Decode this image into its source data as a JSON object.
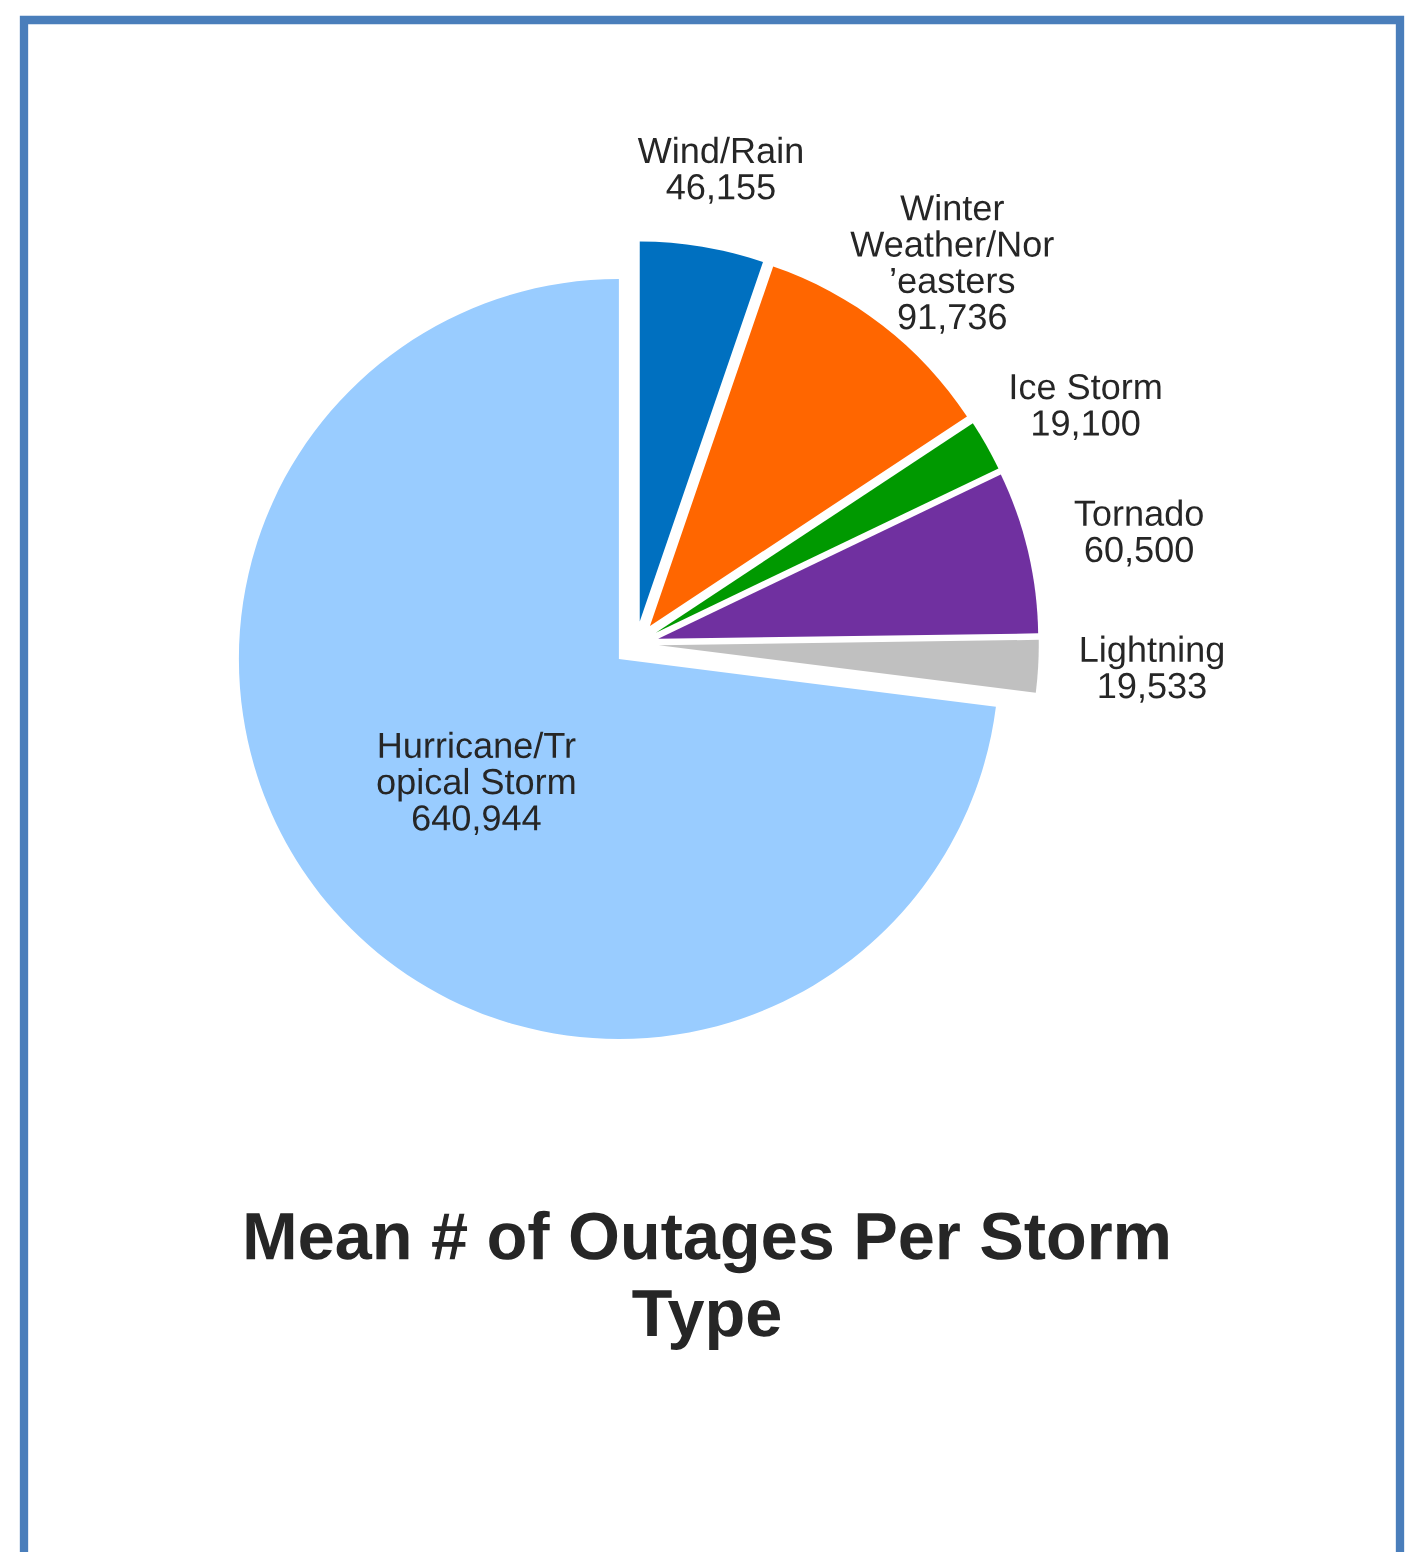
{
  "chart_data": {
    "type": "pie",
    "title": "Mean # of Outages Per Storm\nType",
    "categories": [
      "Wind/Rain",
      "Winter\nWeather/Nor\n’easters",
      "Ice Storm",
      "Tornado",
      "Lightning",
      "Hurricane/Tr\nopical Storm"
    ],
    "values": [
      46155,
      91736,
      19100,
      60500,
      19533,
      640944
    ],
    "value_labels": [
      "46,155",
      "91,736",
      "19,100",
      "60,500",
      "19,533",
      "640,944"
    ],
    "colors": [
      "#0070c0",
      "#ff6600",
      "#009900",
      "#7030a0",
      "#c0c0c0",
      "#99ccff"
    ]
  }
}
